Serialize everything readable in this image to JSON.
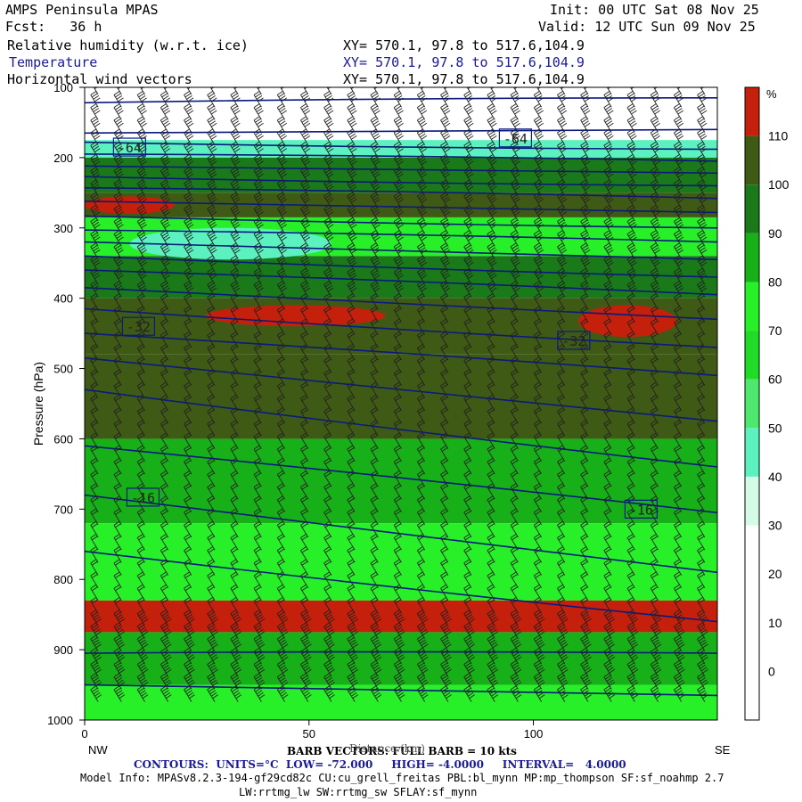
{
  "header": {
    "model": "AMPS Peninsula MPAS",
    "fcst": "Fcst:   36 h",
    "init": "Init: 00 UTC Sat 08 Nov 25",
    "valid": "Valid: 12 UTC Sun 09 Nov 25",
    "field1": "Relative humidity (w.r.t. ice)",
    "field2": "Temperature",
    "field3": "Horizontal wind vectors",
    "xy1": "XY= 570.1, 97.8 to 517.6,104.9",
    "xy2": "XY= 570.1, 97.8 to 517.6,104.9",
    "xy3": "XY= 570.1, 97.8 to 517.6,104.9"
  },
  "footer": {
    "barb": "BARB VECTORS: FULL BARB = 10 kts",
    "xlabel_overlap": "Distance (km)",
    "contours": "CONTOURS:  UNITS=°C  LOW= -72.000     HIGH= -4.0000     INTERVAL=   4.0000",
    "model_info": "Model Info: MPASv8.2.3-194-gf29cd82c CU:cu_grell_freitas PBL:bl_mynn MP:mp_thompson SF:sf_noahmp 2.7",
    "model_info2": "LW:rrtmg_lw SW:rrtmg_sw SFLAY:sf_mynn"
  },
  "colors": {
    "c_0_10": "#ffffff",
    "c_10_20": "#ffffff",
    "c_20_30": "#ffffff",
    "c_30_40": "#d4fbe6",
    "c_40_50": "#5cf2c0",
    "c_50_60": "#4ee86e",
    "c_60_70": "#20dc28",
    "c_70_80": "#28f028",
    "c_80_90": "#18b018",
    "c_90_100": "#1a7a1a",
    "c_100_110": "#3f5a14",
    "c_110_plus": "#c4200c",
    "contour": "#0a1a80"
  },
  "chart_data": {
    "type": "heatmap",
    "title": "Relative humidity (w.r.t. ice)",
    "xlabel": "Distance (km)",
    "ylabel": "Pressure (hPa)",
    "x_ticks": [
      0,
      50,
      100
    ],
    "x_range": [
      0,
      141
    ],
    "x_end_labels": {
      "left": "NW",
      "right": "SE"
    },
    "y_ticks": [
      100,
      200,
      300,
      400,
      500,
      600,
      700,
      800,
      900,
      1000
    ],
    "y_range": [
      100,
      1000
    ],
    "colorbar": {
      "unit": "%",
      "labels": [
        "110",
        "100",
        "90",
        "80",
        "70",
        "60",
        "50",
        "40",
        "30",
        "20",
        "10",
        "0"
      ]
    },
    "temperature_contour_labels": [
      {
        "value": "-64",
        "x": 10,
        "p": 185
      },
      {
        "value": "-64",
        "x": 96,
        "p": 172
      },
      {
        "value": "-32",
        "x": 12,
        "p": 440
      },
      {
        "value": "-32",
        "x": 109,
        "p": 460
      },
      {
        "value": "-16",
        "x": 13,
        "p": 683
      },
      {
        "value": "-16",
        "x": 124,
        "p": 700
      }
    ],
    "rh_bands": [
      {
        "p_top": 100,
        "p_bot": 175,
        "rh": 20
      },
      {
        "p_top": 175,
        "p_bot": 200,
        "rh": 45
      },
      {
        "p_top": 200,
        "p_bot": 250,
        "rh": 95
      },
      {
        "p_top": 250,
        "p_bot": 285,
        "rh": 105
      },
      {
        "p_top": 285,
        "p_bot": 340,
        "rh": 75
      },
      {
        "p_top": 340,
        "p_bot": 400,
        "rh": 95
      },
      {
        "p_top": 400,
        "p_bot": 480,
        "rh": 105
      },
      {
        "p_top": 480,
        "p_bot": 600,
        "rh": 103
      },
      {
        "p_top": 600,
        "p_bot": 720,
        "rh": 85
      },
      {
        "p_top": 720,
        "p_bot": 830,
        "rh": 72
      },
      {
        "p_top": 830,
        "p_bot": 875,
        "rh": 112
      },
      {
        "p_top": 875,
        "p_bot": 950,
        "rh": 85
      },
      {
        "p_top": 950,
        "p_bot": 1000,
        "rh": 75
      }
    ],
    "rh_patches": [
      {
        "x0": 0,
        "x1": 20,
        "p_top": 255,
        "p_bot": 280,
        "rh": 112
      },
      {
        "x0": 10,
        "x1": 55,
        "p_top": 300,
        "p_bot": 345,
        "rh": 42
      },
      {
        "x0": 27,
        "x1": 67,
        "p_top": 410,
        "p_bot": 440,
        "rh": 112
      },
      {
        "x0": 110,
        "x1": 132,
        "p_top": 410,
        "p_bot": 455,
        "rh": 112
      }
    ],
    "temperature_isotherms_p_left": [
      122,
      165,
      178,
      195,
      212,
      227,
      243,
      262,
      283,
      303,
      320,
      340,
      360,
      385,
      415,
      450,
      485,
      530,
      610,
      680,
      760,
      905,
      950
    ],
    "temperature_isotherms_p_right": [
      115,
      160,
      188,
      205,
      222,
      240,
      258,
      278,
      300,
      320,
      345,
      370,
      395,
      430,
      470,
      510,
      575,
      640,
      705,
      790,
      860,
      905,
      965
    ]
  }
}
